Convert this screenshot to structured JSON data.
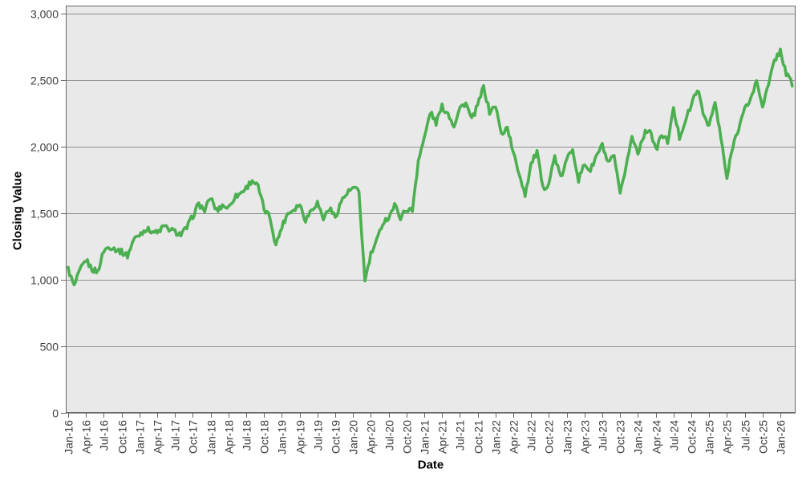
{
  "chart": {
    "y_axis_title": "Closing Value",
    "x_axis_title": "Date"
  },
  "chart_data": {
    "type": "line",
    "title": "",
    "xlabel": "Date",
    "ylabel": "Closing Value",
    "legend": "none",
    "grid": true,
    "ylim": [
      0,
      3060
    ],
    "y_tick_values": [
      0,
      500,
      1000,
      1500,
      2000,
      2500,
      3000
    ],
    "y_tick_labels": [
      "0",
      "500",
      "1,000",
      "1,500",
      "2,000",
      "2,500",
      "3,000"
    ],
    "x_tick_labels": [
      "Jan-16",
      "Apr-16",
      "Jul-16",
      "Oct-16",
      "Jan-17",
      "Apr-17",
      "Jul-17",
      "Oct-17",
      "Jan-18",
      "Apr-18",
      "Jul-18",
      "Oct-18",
      "Jan-19",
      "Apr-19",
      "Jul-19",
      "Oct-19",
      "Jan-20",
      "Apr-20",
      "Jul-20",
      "Oct-20",
      "Jan-21",
      "Apr-21",
      "Jul-21",
      "Oct-21",
      "Jan-22",
      "Apr-22",
      "Jul-22",
      "Oct-22",
      "Jan-23",
      "Apr-23",
      "Jul-23",
      "Oct-23",
      "Jan-24",
      "Apr-24",
      "Jul-24",
      "Oct-24",
      "Jan-25",
      "Apr-25",
      "Jul-25",
      "Oct-25",
      "Jan-26"
    ],
    "series": [
      {
        "name": "Closing Value",
        "start": "2016-01",
        "interval": "monthly",
        "values": [
          1080,
          950,
          1070,
          1150,
          1080,
          1060,
          1220,
          1250,
          1230,
          1210,
          1180,
          1300,
          1340,
          1380,
          1370,
          1350,
          1400,
          1380,
          1360,
          1340,
          1390,
          1480,
          1570,
          1520,
          1620,
          1520,
          1560,
          1540,
          1620,
          1650,
          1690,
          1750,
          1700,
          1530,
          1470,
          1260,
          1400,
          1500,
          1530,
          1570,
          1450,
          1530,
          1580,
          1460,
          1540,
          1470,
          1590,
          1650,
          1690,
          1660,
          990,
          1190,
          1290,
          1430,
          1470,
          1560,
          1470,
          1530,
          1520,
          1900,
          2060,
          2260,
          2180,
          2300,
          2250,
          2160,
          2290,
          2330,
          2200,
          2310,
          2450,
          2260,
          2310,
          2090,
          2150,
          1950,
          1800,
          1640,
          1870,
          1960,
          1680,
          1730,
          1930,
          1760,
          1900,
          1990,
          1750,
          1870,
          1820,
          1930,
          2010,
          1870,
          1930,
          1630,
          1860,
          2070,
          1960,
          2090,
          2140,
          1970,
          2090,
          2040,
          2280,
          2070,
          2200,
          2310,
          2440,
          2250,
          2160,
          2330,
          2060,
          1760,
          2010,
          2150,
          2280,
          2360,
          2490,
          2310,
          2460,
          2650,
          2720,
          2550,
          2470
        ]
      }
    ],
    "colors": {
      "line": "#4caf50",
      "plot_bg": "#e9e9e9",
      "grid": "#909090",
      "border": "#666666",
      "tick_text": "#3d3d3d",
      "axis_title": "#000000"
    }
  }
}
